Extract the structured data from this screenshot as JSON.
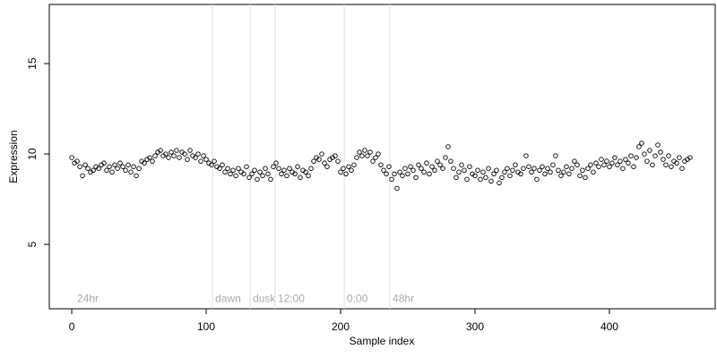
{
  "chart_data": {
    "type": "scatter",
    "x_label": "Sample index",
    "y_label": "Expression",
    "xlim": [
      -16.7,
      478.7
    ],
    "ylim": [
      1.44,
      18.27
    ],
    "xticks": [
      0,
      100,
      200,
      300,
      400
    ],
    "yticks": [
      5,
      10,
      15
    ],
    "series": [
      {
        "color": "#000000",
        "x": [
          0,
          2,
          4,
          6,
          8,
          10,
          12,
          14,
          16,
          18,
          20,
          22,
          24,
          26,
          28,
          30,
          32,
          34,
          36,
          38,
          40,
          42,
          44,
          46,
          48,
          50,
          52,
          54,
          56,
          58,
          60,
          62,
          64,
          66,
          68,
          70,
          72,
          74,
          76,
          78,
          80,
          82,
          84,
          86,
          88,
          90,
          92,
          94,
          96,
          98,
          100,
          102,
          104,
          106,
          108,
          110,
          112,
          114,
          116,
          118,
          120,
          122,
          124,
          126,
          128,
          130,
          132,
          134,
          136,
          138,
          140,
          142,
          144,
          146,
          148,
          150,
          152,
          154,
          156,
          158,
          160,
          162,
          164,
          166,
          168,
          170,
          172,
          174,
          176,
          178,
          180,
          182,
          184,
          186,
          188,
          190,
          192,
          194,
          196,
          198,
          200,
          202,
          204,
          206,
          208,
          210,
          212,
          214,
          216,
          218,
          220,
          222,
          224,
          226,
          228,
          230,
          232,
          234,
          236,
          238,
          240,
          242,
          244,
          246,
          248,
          250,
          252,
          254,
          256,
          258,
          260,
          262,
          264,
          266,
          268,
          270,
          272,
          274,
          276,
          278,
          280,
          282,
          284,
          286,
          288,
          290,
          292,
          294,
          296,
          298,
          300,
          302,
          304,
          306,
          308,
          310,
          312,
          314,
          316,
          318,
          320,
          322,
          324,
          326,
          328,
          330,
          332,
          334,
          336,
          338,
          340,
          342,
          344,
          346,
          348,
          350,
          352,
          354,
          356,
          358,
          360,
          362,
          364,
          366,
          368,
          370,
          372,
          374,
          376,
          378,
          380,
          382,
          384,
          386,
          388,
          390,
          392,
          394,
          396,
          398,
          400,
          402,
          404,
          406,
          408,
          410,
          412,
          414,
          416,
          418,
          420,
          422,
          424,
          426,
          428,
          430,
          432,
          434,
          436,
          438,
          440,
          442,
          444,
          446,
          448,
          450,
          452,
          454,
          456,
          458,
          460
        ],
        "values": [
          9.8,
          9.5,
          9.6,
          9.3,
          8.8,
          9.4,
          9.2,
          9.0,
          9.1,
          9.3,
          9.2,
          9.4,
          9.5,
          9.1,
          9.3,
          9.0,
          9.4,
          9.2,
          9.5,
          9.3,
          9.1,
          9.4,
          9.0,
          9.3,
          8.8,
          9.2,
          9.6,
          9.5,
          9.7,
          9.8,
          9.6,
          9.9,
          10.1,
          10.2,
          9.9,
          10.0,
          9.8,
          10.1,
          9.9,
          10.2,
          9.8,
          10.1,
          10.0,
          9.7,
          10.2,
          9.9,
          9.8,
          10.0,
          9.6,
          9.9,
          9.7,
          9.5,
          9.4,
          9.6,
          9.3,
          9.2,
          9.4,
          9.0,
          9.2,
          8.9,
          9.1,
          8.8,
          9.2,
          9.0,
          8.9,
          9.3,
          8.7,
          8.9,
          9.1,
          8.6,
          9.0,
          8.8,
          9.2,
          8.9,
          8.6,
          9.3,
          9.5,
          9.2,
          8.9,
          9.1,
          8.8,
          9.2,
          9.0,
          8.9,
          9.3,
          8.7,
          9.1,
          9.0,
          8.8,
          9.2,
          9.6,
          9.8,
          9.7,
          10.0,
          9.5,
          9.3,
          9.7,
          9.8,
          9.9,
          9.6,
          9.0,
          9.2,
          8.9,
          9.3,
          9.1,
          9.4,
          9.8,
          10.1,
          9.9,
          10.2,
          9.9,
          10.1,
          9.6,
          9.8,
          10.0,
          9.4,
          9.1,
          8.9,
          9.3,
          8.6,
          8.9,
          8.1,
          9.0,
          8.8,
          9.2,
          8.9,
          9.3,
          9.1,
          8.7,
          9.4,
          9.2,
          9.0,
          9.5,
          8.9,
          9.3,
          9.1,
          9.6,
          9.4,
          9.2,
          9.8,
          10.4,
          9.6,
          9.2,
          8.7,
          9.0,
          9.4,
          9.1,
          8.6,
          9.3,
          8.9,
          8.8,
          9.1,
          8.6,
          9.0,
          8.7,
          9.2,
          8.5,
          8.9,
          9.1,
          8.4,
          8.7,
          9.0,
          9.2,
          8.8,
          9.1,
          9.4,
          9.0,
          8.9,
          9.2,
          9.9,
          9.3,
          9.0,
          9.2,
          8.6,
          9.1,
          9.3,
          8.9,
          9.2,
          9.0,
          9.4,
          9.9,
          9.1,
          8.8,
          9.0,
          9.3,
          8.9,
          9.2,
          9.6,
          9.4,
          8.8,
          9.1,
          8.7,
          9.2,
          9.4,
          9.0,
          9.5,
          9.3,
          9.7,
          9.4,
          9.6,
          9.3,
          9.5,
          9.8,
          9.4,
          9.6,
          9.2,
          9.7,
          9.5,
          9.9,
          9.3,
          9.8,
          10.4,
          10.6,
          10.0,
          9.6,
          10.2,
          9.4,
          9.9,
          10.5,
          10.1,
          9.7,
          9.4,
          9.9,
          9.3,
          9.6,
          9.5,
          9.8,
          9.2,
          9.6,
          9.7,
          9.8
        ]
      }
    ],
    "annotations": [
      {
        "x": 2,
        "y": 1.98,
        "label": "24hr",
        "line": false
      },
      {
        "x": 104.7,
        "y": 1.98,
        "label": "dawn",
        "line": true
      },
      {
        "x": 132.7,
        "y": 1.98,
        "label": "dusk",
        "line": true
      },
      {
        "x": 151.3,
        "y": 1.98,
        "label": "12:00",
        "line": true
      },
      {
        "x": 202.7,
        "y": 1.98,
        "label": "0:00",
        "line": true
      },
      {
        "x": 236.7,
        "y": 1.98,
        "label": "48hr",
        "line": true
      }
    ]
  }
}
